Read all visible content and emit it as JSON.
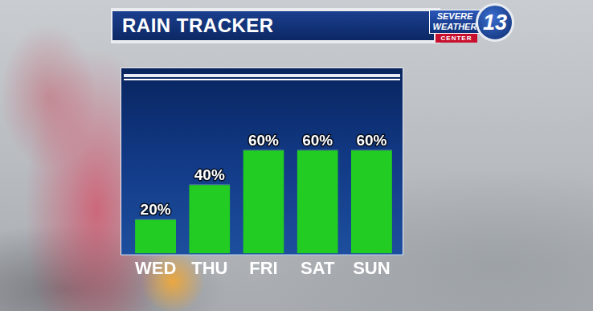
{
  "header": {
    "title": "RAIN TRACKER",
    "logo": {
      "lines": [
        "SEVERE",
        "WEATHER",
        "CENTER"
      ],
      "number": "13"
    }
  },
  "chart_data": {
    "type": "bar",
    "categories": [
      "WED",
      "THU",
      "FRI",
      "SAT",
      "SUN"
    ],
    "values": [
      20,
      40,
      60,
      60,
      60
    ],
    "value_labels": [
      "20%",
      "40%",
      "60%",
      "60%",
      "60%"
    ],
    "color": "#22cc22",
    "ylim": [
      0,
      100
    ],
    "grid": false,
    "data_labels": true,
    "tick_labels": "x"
  }
}
